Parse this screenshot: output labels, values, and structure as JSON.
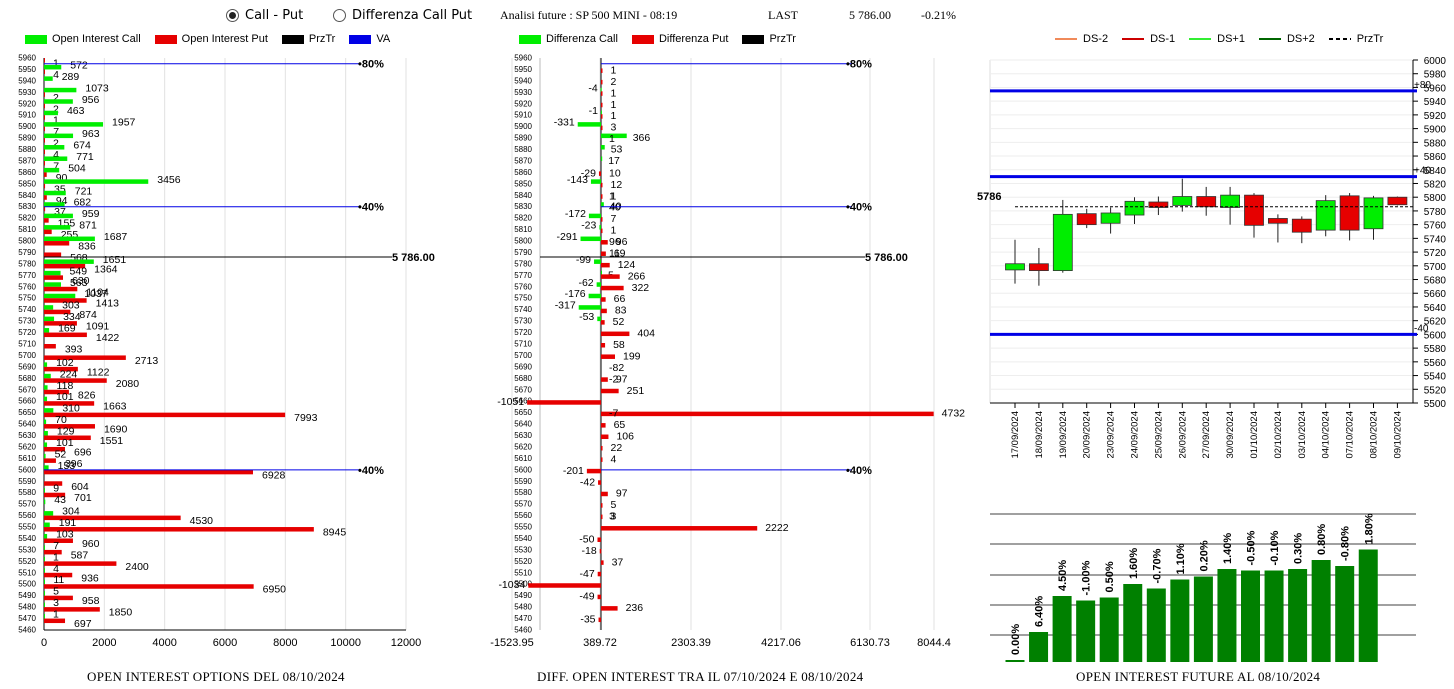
{
  "topbar": {
    "radio1": "Call - Put",
    "radio2": "Differenza Call Put",
    "title": "Analisi future : SP 500 MINI - 08:19",
    "last_label": "LAST",
    "last_value": "5 786.00",
    "change": "-0.21%"
  },
  "colors": {
    "green": "#00ee00",
    "red": "#e60000",
    "blue": "#0000e6",
    "darkgreen": "#008000"
  },
  "strikes": [
    5960,
    5950,
    5940,
    5930,
    5920,
    5910,
    5900,
    5890,
    5880,
    5870,
    5860,
    5850,
    5840,
    5830,
    5820,
    5810,
    5800,
    5790,
    5780,
    5770,
    5760,
    5750,
    5740,
    5730,
    5720,
    5710,
    5700,
    5690,
    5680,
    5670,
    5660,
    5650,
    5640,
    5630,
    5620,
    5610,
    5600,
    5590,
    5580,
    5570,
    5560,
    5550,
    5540,
    5530,
    5520,
    5510,
    5500,
    5490,
    5480,
    5470,
    5460
  ],
  "chart_data": [
    {
      "type": "bar",
      "orientation": "horizontal",
      "caption": "OPEN INTEREST OPTIONS DEL 08/10/2024",
      "legend": [
        "Open Interest Call",
        "Open Interest Put",
        "PrzTr",
        "VA"
      ],
      "categories": [
        5960,
        5950,
        5940,
        5930,
        5920,
        5910,
        5900,
        5890,
        5880,
        5870,
        5860,
        5850,
        5840,
        5830,
        5820,
        5810,
        5800,
        5790,
        5780,
        5770,
        5760,
        5750,
        5740,
        5730,
        5720,
        5710,
        5700,
        5690,
        5680,
        5670,
        5660,
        5650,
        5640,
        5630,
        5620,
        5610,
        5600,
        5590,
        5580,
        5570,
        5560,
        5550,
        5540,
        5530,
        5520,
        5510,
        5500,
        5490,
        5480,
        5470,
        5460
      ],
      "series": [
        {
          "name": "Open Interest Call",
          "values": [
            null,
            572,
            289,
            1073,
            956,
            463,
            1957,
            963,
            674,
            771,
            504,
            3456,
            721,
            682,
            959,
            871,
            1687,
            null,
            1651,
            549,
            563,
            1037,
            303,
            334,
            169,
            null,
            null,
            102,
            224,
            118,
            101,
            310,
            70,
            129,
            101,
            52,
            153,
            null,
            9,
            43,
            304,
            191,
            103,
            7,
            1,
            4,
            11,
            5,
            3,
            1,
            null
          ]
        },
        {
          "name": "Open Interest Put",
          "values": [
            1,
            4,
            null,
            2,
            2,
            1,
            7,
            2,
            4,
            7,
            90,
            35,
            94,
            37,
            155,
            255,
            836,
            568,
            1364,
            630,
            1104,
            1413,
            874,
            1091,
            1422,
            393,
            2713,
            1122,
            2080,
            826,
            1663,
            7993,
            1690,
            1551,
            696,
            396,
            6928,
            604,
            701,
            null,
            4530,
            8945,
            960,
            587,
            2400,
            936,
            6950,
            958,
            1850,
            697,
            null
          ]
        }
      ],
      "lines": [
        {
          "name": "VA",
          "y": 5955,
          "label": "80%"
        },
        {
          "name": "VA",
          "y": 5830,
          "label": "40%"
        },
        {
          "name": "PrzTr",
          "y": 5786,
          "label": "5 786.00"
        },
        {
          "name": "VA",
          "y": 5600,
          "label": "40%"
        }
      ],
      "xticks": [
        0,
        2000,
        4000,
        6000,
        8000,
        10000,
        12000
      ],
      "xlim": [
        0,
        12000
      ]
    },
    {
      "type": "bar",
      "orientation": "horizontal",
      "caption": "DIFF. OPEN INTEREST TRA IL 07/10/2024 E 08/10/2024",
      "legend": [
        "Differenza Call",
        "Differenza Put",
        "PrzTr"
      ],
      "categories": [
        5960,
        5950,
        5940,
        5930,
        5920,
        5910,
        5900,
        5890,
        5880,
        5870,
        5860,
        5850,
        5840,
        5830,
        5820,
        5810,
        5800,
        5790,
        5780,
        5770,
        5760,
        5750,
        5740,
        5730,
        5720,
        5710,
        5700,
        5690,
        5680,
        5670,
        5660,
        5650,
        5640,
        5630,
        5620,
        5610,
        5600,
        5590,
        5580,
        5570,
        5560,
        5550,
        5540,
        5530,
        5520,
        5510,
        5500,
        5490,
        5480,
        5470,
        5460
      ],
      "series": [
        {
          "name": "Differenza Call",
          "values": [
            null,
            null,
            null,
            -4,
            null,
            -1,
            -331,
            366,
            53,
            17,
            null,
            -143,
            null,
            40,
            -172,
            -23,
            -291,
            null,
            -99,
            5,
            -62,
            -176,
            -317,
            -53,
            null,
            null,
            null,
            null,
            null,
            null,
            null,
            null,
            null,
            null,
            null,
            null,
            null,
            null,
            null,
            null,
            null,
            null,
            null,
            null,
            null,
            null,
            null,
            null,
            null,
            null,
            null
          ]
        },
        {
          "name": "Differenza Put",
          "values": [
            null,
            1,
            2,
            1,
            1,
            1,
            3,
            null,
            null,
            null,
            -29,
            12,
            1,
            null,
            7,
            1,
            96,
            69,
            124,
            266,
            322,
            66,
            83,
            52,
            404,
            58,
            199,
            null,
            97,
            251,
            -1051,
            4732,
            65,
            106,
            22,
            4,
            -201,
            -42,
            97,
            5,
            3,
            2222,
            -50,
            -18,
            37,
            -47,
            -1034,
            -49,
            236,
            -35,
            null
          ]
        }
      ],
      "extra_labels": [
        {
          "y": 5890,
          "text": "1"
        },
        {
          "y": 5860,
          "text": "10"
        },
        {
          "y": 5840,
          "text": "1"
        },
        {
          "y": 5830,
          "text": "40"
        },
        {
          "y": 5800,
          "text": "96"
        },
        {
          "y": 5790,
          "text": "11"
        },
        {
          "y": 5690,
          "text": "-82"
        },
        {
          "y": 5680,
          "text": "-2"
        },
        {
          "y": 5650,
          "text": "-7"
        },
        {
          "y": 5560,
          "text": "3"
        }
      ],
      "lines": [
        {
          "name": "PrzTr",
          "y": 5955,
          "label": "80%"
        },
        {
          "name": "PrzTr",
          "y": 5830,
          "label": "40%"
        },
        {
          "name": "PrzTr",
          "y": 5786,
          "label": "5 786.00"
        },
        {
          "name": "PrzTr",
          "y": 5600,
          "label": "40%"
        }
      ],
      "xticks": [
        -1523.95,
        389.72,
        2303.39,
        4217.06,
        6130.73,
        8044.4
      ],
      "xlim": [
        -1523.95,
        8044.4
      ]
    },
    {
      "type": "candlestick",
      "legend": [
        "DS-2",
        "DS-1",
        "DS+1",
        "DS+2",
        "PrzTr"
      ],
      "categories": [
        "17/09/2024",
        "18/09/2024",
        "19/09/2024",
        "20/09/2024",
        "23/09/2024",
        "24/09/2024",
        "25/09/2024",
        "26/09/2024",
        "27/09/2024",
        "30/09/2024",
        "01/10/2024",
        "02/10/2024",
        "03/10/2024",
        "04/10/2024",
        "07/10/2024",
        "08/10/2024",
        "09/10/2024"
      ],
      "ohlc": [
        {
          "o": 5694,
          "h": 5738,
          "l": 5674,
          "c": 5703
        },
        {
          "o": 5703,
          "h": 5726,
          "l": 5671,
          "c": 5693
        },
        {
          "o": 5693,
          "h": 5796,
          "l": 5690,
          "c": 5775
        },
        {
          "o": 5776,
          "h": 5783,
          "l": 5755,
          "c": 5760
        },
        {
          "o": 5762,
          "h": 5785,
          "l": 5747,
          "c": 5777
        },
        {
          "o": 5774,
          "h": 5800,
          "l": 5761,
          "c": 5794
        },
        {
          "o": 5793,
          "h": 5801,
          "l": 5774,
          "c": 5785
        },
        {
          "o": 5788,
          "h": 5827,
          "l": 5779,
          "c": 5801
        },
        {
          "o": 5801,
          "h": 5815,
          "l": 5773,
          "c": 5786
        },
        {
          "o": 5785,
          "h": 5815,
          "l": 5760,
          "c": 5803
        },
        {
          "o": 5803,
          "h": 5806,
          "l": 5741,
          "c": 5759
        },
        {
          "o": 5769,
          "h": 5775,
          "l": 5734,
          "c": 5762
        },
        {
          "o": 5768,
          "h": 5772,
          "l": 5733,
          "c": 5749
        },
        {
          "o": 5752,
          "h": 5803,
          "l": 5743,
          "c": 5795
        },
        {
          "o": 5802,
          "h": 5806,
          "l": 5737,
          "c": 5752
        },
        {
          "o": 5754,
          "h": 5802,
          "l": 5738,
          "c": 5799
        },
        {
          "o": 5800,
          "h": 5801,
          "l": 5788,
          "c": 5789
        }
      ],
      "price_label": "5786",
      "prztr": 5786,
      "lines": [
        {
          "y": 5955,
          "label": "+80"
        },
        {
          "y": 5830,
          "label": "+40"
        },
        {
          "y": 5600,
          "label": "-40"
        }
      ],
      "yticks": [
        6000,
        5980,
        5960,
        5940,
        5920,
        5900,
        5880,
        5860,
        5840,
        5820,
        5800,
        5780,
        5760,
        5740,
        5720,
        5700,
        5680,
        5660,
        5640,
        5620,
        5600,
        5580,
        5560,
        5540,
        5520,
        5500
      ],
      "ylim": [
        5500,
        6000
      ]
    },
    {
      "type": "bar",
      "caption": "OPEN INTEREST FUTURE AL 08/10/2024",
      "labels": [
        "0.00%",
        "6.40%",
        "4.50%",
        "-1.00%",
        "0.50%",
        "1.60%",
        "-0.70%",
        "1.10%",
        "0.20%",
        "1.40%",
        "-0.50%",
        "-0.10%",
        "0.30%",
        "0.80%",
        "-0.80%",
        "1.80%"
      ],
      "values": [
        0,
        20,
        44,
        41,
        43,
        52,
        49,
        55,
        57,
        62,
        61,
        61,
        62,
        68,
        64,
        75
      ]
    }
  ]
}
